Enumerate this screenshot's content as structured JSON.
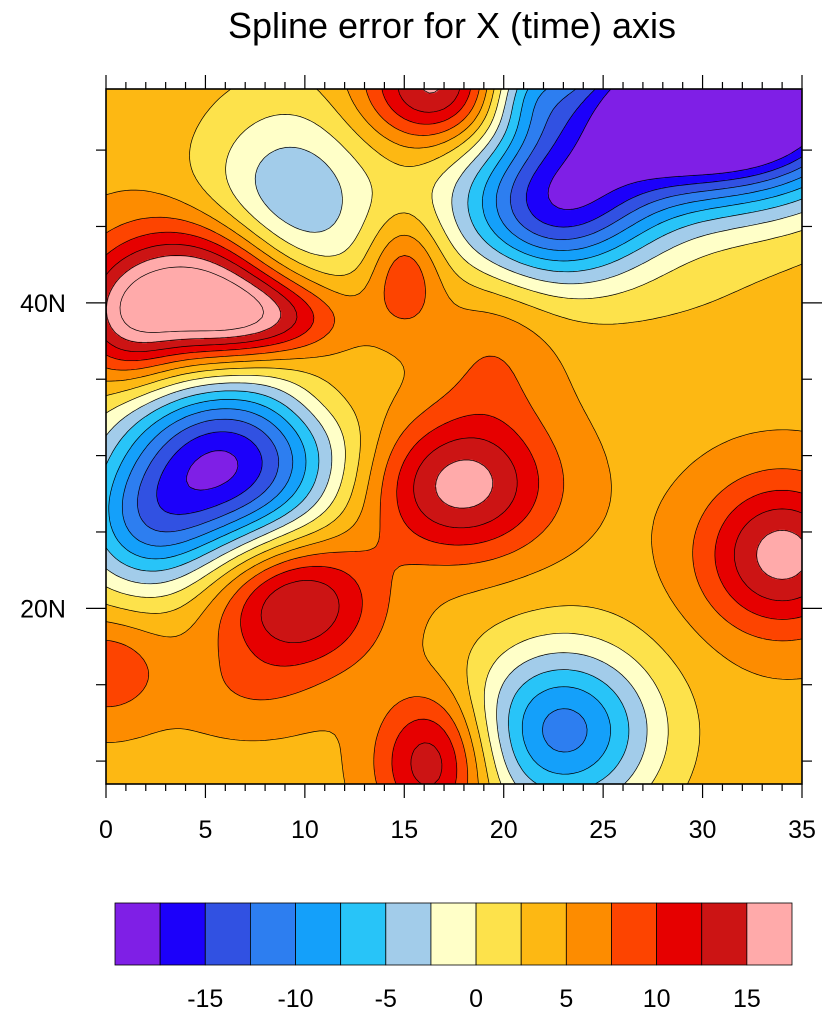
{
  "chart_data": {
    "type": "contour",
    "title": "Spline error for X (time) axis",
    "xlabel": "",
    "ylabel": "",
    "xlim": [
      0,
      35
    ],
    "ylim": [
      8.5,
      54
    ],
    "x_ticks": [
      0,
      5,
      10,
      15,
      20,
      25,
      30,
      35
    ],
    "x_tick_labels": [
      "0",
      "5",
      "10",
      "15",
      "20",
      "25",
      "30",
      "35"
    ],
    "y_ticks": [
      20,
      40
    ],
    "y_tick_labels": [
      "20N",
      "40N"
    ],
    "contour_levels": [
      -18,
      -16,
      -14,
      -12,
      -10,
      -8,
      -6,
      -4,
      -2,
      0,
      2,
      4,
      6,
      8,
      10,
      12,
      14,
      16,
      18
    ],
    "fill_colors": [
      "#a2ccea",
      "#ffffc8",
      "#fde24b",
      "#fdb813",
      "#fd8c00",
      "#fd4400",
      "#e60000",
      "#cc1414",
      "#ffaaaa"
    ],
    "colorbar": {
      "colors": [
        "#7f1fe6",
        "#1c00fa",
        "#3151e2",
        "#2d7ef0",
        "#14a0fa",
        "#28c4f8",
        "#a2ccea",
        "#ffffc8",
        "#fde24b",
        "#fdb813",
        "#fd8c00",
        "#fd4400",
        "#e60000",
        "#cc1414",
        "#ffaaaa"
      ],
      "tick_labels": [
        "-15",
        "-10",
        "-5",
        "0",
        "5",
        "10",
        "15"
      ]
    },
    "background_value": 4,
    "features": [
      {
        "x": 4.9,
        "y": 40.5,
        "amp": 16,
        "sx": 3.4,
        "sy": 3.3
      },
      {
        "x": 1.0,
        "y": 38.5,
        "amp": 6,
        "sx": 1.8,
        "sy": 2.8
      },
      {
        "x": 8.5,
        "y": 39.0,
        "amp": 7,
        "sx": 2.8,
        "sy": 1.8
      },
      {
        "x": 9.3,
        "y": 46.0,
        "amp": -9,
        "sx": 3.2,
        "sy": 5.0
      },
      {
        "x": 16.7,
        "y": 54.0,
        "amp": 12,
        "sx": 2.6,
        "sy": 2.6
      },
      {
        "x": 15.0,
        "y": 42.0,
        "amp": 6,
        "sx": 1.3,
        "sy": 2.6
      },
      {
        "x": 6.0,
        "y": 29.5,
        "amp": -20,
        "sx": 3.9,
        "sy": 4.3
      },
      {
        "x": 1.8,
        "y": 25.0,
        "amp": -8,
        "sx": 2.5,
        "sy": 3.2
      },
      {
        "x": 17.8,
        "y": 28.0,
        "amp": 11,
        "sx": 3.2,
        "sy": 3.2
      },
      {
        "x": 9.5,
        "y": 20.5,
        "amp": 11,
        "sx": 2.9,
        "sy": 3.2
      },
      {
        "x": 34.0,
        "y": 23.5,
        "amp": 11,
        "sx": 2.8,
        "sy": 3.5
      },
      {
        "x": 16.5,
        "y": 10.0,
        "amp": 10,
        "sx": 2.0,
        "sy": 3.2
      },
      {
        "x": 0.0,
        "y": 16.0,
        "amp": 5,
        "sx": 2.0,
        "sy": 2.4
      },
      {
        "x": 23.0,
        "y": 12.0,
        "amp": -14,
        "sx": 3.3,
        "sy": 4.0
      },
      {
        "x": 32.5,
        "y": 53.5,
        "amp": -25,
        "sx": 4.6,
        "sy": 4.4
      },
      {
        "x": 27.0,
        "y": 52.0,
        "amp": -14,
        "sx": 5.0,
        "sy": 4.0
      },
      {
        "x": 22.5,
        "y": 46.0,
        "amp": -16,
        "sx": 3.5,
        "sy": 3.4
      },
      {
        "x": 21.0,
        "y": 54.0,
        "amp": -5,
        "sx": 1.5,
        "sy": 2.0
      },
      {
        "x": 19.5,
        "y": 36.5,
        "amp": 3,
        "sx": 2.2,
        "sy": 4.0
      },
      {
        "x": 30.0,
        "y": 40.0,
        "amp": -1,
        "sx": 4.5,
        "sy": 3.0
      },
      {
        "x": 11.0,
        "y": 34.0,
        "amp": 2,
        "sx": 2.0,
        "sy": 2.0
      },
      {
        "x": 7.0,
        "y": 14.5,
        "amp": 2,
        "sx": 2.5,
        "sy": 2.0
      }
    ]
  }
}
